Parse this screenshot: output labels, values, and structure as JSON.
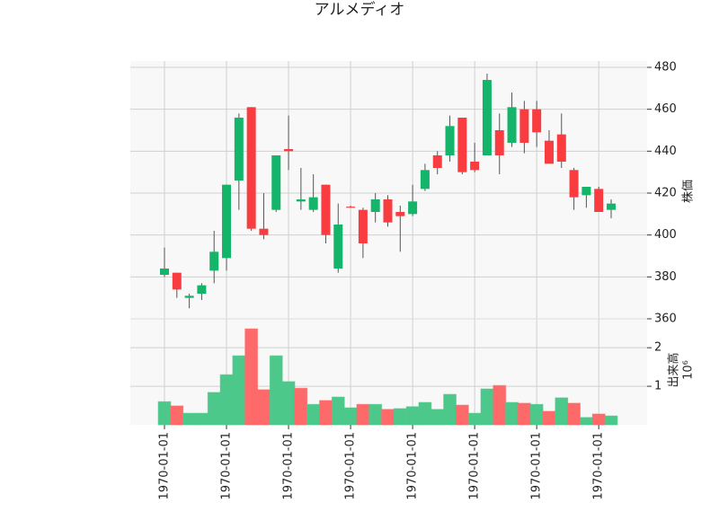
{
  "chart_data": {
    "type": "candlestick",
    "title": "アルメディオ",
    "categories": [
      "1970-01-01",
      null,
      null,
      null,
      null,
      "1970-01-01",
      null,
      null,
      null,
      null,
      "1970-01-01",
      null,
      null,
      null,
      null,
      "1970-01-01",
      null,
      null,
      null,
      null,
      "1970-01-01",
      null,
      null,
      null,
      null,
      "1970-01-01",
      null,
      null,
      null,
      null,
      "1970-01-01",
      null,
      null,
      null,
      null,
      "1970-01-01",
      null
    ],
    "open": [
      381,
      382,
      370,
      372,
      383,
      389,
      426,
      461,
      403,
      412,
      441,
      416,
      412,
      424,
      384,
      413.5,
      412,
      411,
      417,
      411,
      410,
      422,
      438,
      438,
      456,
      435,
      438,
      450,
      444,
      460,
      460,
      445,
      448,
      431,
      419,
      422,
      412
    ],
    "high": [
      394,
      382,
      372,
      377,
      402,
      424,
      458,
      461,
      420,
      438,
      457,
      432,
      429,
      424,
      415,
      414,
      413,
      420,
      419,
      414,
      424,
      434,
      440,
      457,
      456,
      444,
      477,
      458,
      468,
      464,
      464,
      450,
      458,
      432,
      423,
      423,
      417
    ],
    "low": [
      380,
      370,
      365,
      369,
      377,
      383,
      412,
      402,
      398,
      411,
      431,
      412,
      411,
      396,
      382,
      413,
      389,
      406,
      404,
      392,
      409,
      421,
      429,
      435,
      429,
      430,
      438,
      429,
      442,
      439,
      442,
      434,
      432,
      412,
      413,
      411,
      408
    ],
    "close": [
      384,
      374,
      371,
      376,
      392,
      424,
      456,
      403,
      400,
      438,
      440,
      417,
      418,
      400,
      405,
      413,
      396,
      417,
      406,
      409,
      416,
      431,
      432,
      452,
      430,
      431,
      474,
      438,
      461,
      444,
      449,
      434,
      435,
      418,
      423,
      411,
      415
    ],
    "up_color": "#15b46b",
    "down_color": "#f83c3f",
    "ylim": [
      360,
      483
    ],
    "yticks": [
      360,
      380,
      400,
      420,
      440,
      460,
      480
    ],
    "y_label": "株価",
    "volume": [
      0.6,
      0.49,
      0.3,
      0.3,
      0.84,
      1.3,
      1.79,
      2.49,
      0.91,
      1.79,
      1.12,
      0.95,
      0.53,
      0.63,
      0.72,
      0.44,
      0.53,
      0.53,
      0.4,
      0.42,
      0.47,
      0.58,
      0.4,
      0.79,
      0.51,
      0.3,
      0.93,
      1.02,
      0.58,
      0.56,
      0.53,
      0.35,
      0.7,
      0.56,
      0.19,
      0.28,
      0.23
    ],
    "volume_colors": [
      "#4cc88a",
      "#fe6a6a",
      "#4cc88a",
      "#4cc88a",
      "#4cc88a",
      "#4cc88a",
      "#4cc88a",
      "#fe6a6a",
      "#fe6a6a",
      "#4cc88a",
      "#4cc88a",
      "#fe6a6a",
      "#4cc88a",
      "#fe6a6a",
      "#4cc88a",
      "#4cc88a",
      "#fe6a6a",
      "#4cc88a",
      "#fe6a6a",
      "#4cc88a",
      "#4cc88a",
      "#4cc88a",
      "#4cc88a",
      "#4cc88a",
      "#fe6a6a",
      "#4cc88a",
      "#4cc88a",
      "#fe6a6a",
      "#4cc88a",
      "#fe6a6a",
      "#4cc88a",
      "#fe6a6a",
      "#4cc88a",
      "#fe6a6a",
      "#4cc88a",
      "#fe6a6a",
      "#4cc88a"
    ],
    "y2lim": [
      0,
      2.75
    ],
    "y2ticks": [
      1,
      2
    ],
    "y2_label": "出来高",
    "y2_scale_label": "10⁶",
    "grid": true
  }
}
